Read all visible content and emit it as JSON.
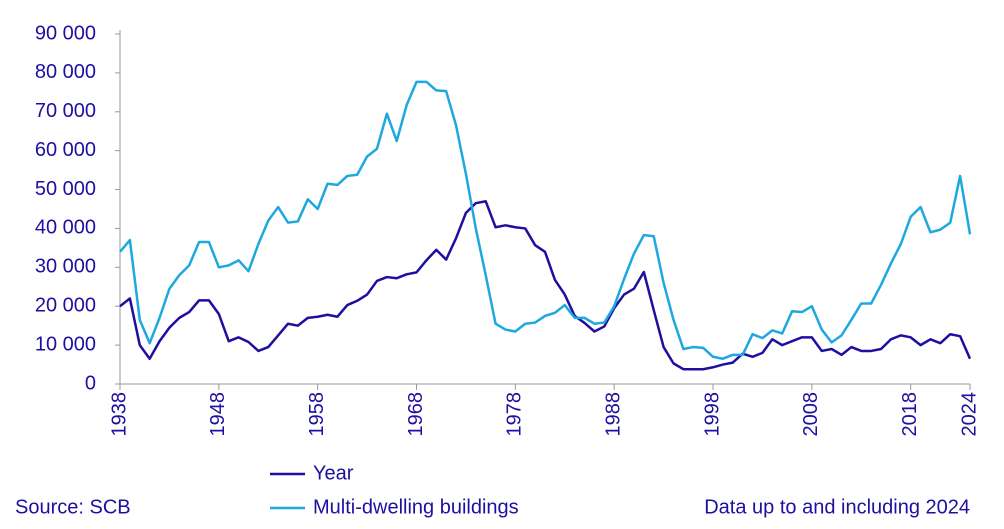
{
  "chart_data": {
    "type": "line",
    "x": [
      1938,
      1939,
      1940,
      1941,
      1942,
      1943,
      1944,
      1945,
      1946,
      1947,
      1948,
      1949,
      1950,
      1951,
      1952,
      1953,
      1954,
      1955,
      1956,
      1957,
      1958,
      1959,
      1960,
      1961,
      1962,
      1963,
      1964,
      1965,
      1966,
      1967,
      1968,
      1969,
      1970,
      1971,
      1972,
      1973,
      1974,
      1975,
      1976,
      1977,
      1978,
      1979,
      1980,
      1981,
      1982,
      1983,
      1984,
      1985,
      1986,
      1987,
      1988,
      1989,
      1990,
      1991,
      1992,
      1993,
      1994,
      1995,
      1996,
      1997,
      1998,
      1999,
      2000,
      2001,
      2002,
      2003,
      2004,
      2005,
      2006,
      2007,
      2008,
      2009,
      2010,
      2011,
      2012,
      2013,
      2014,
      2015,
      2016,
      2017,
      2018,
      2019,
      2020,
      2021,
      2022,
      2023,
      2024
    ],
    "series": [
      {
        "name": "Year",
        "color": "#1e0fa0",
        "values": [
          20000,
          22000,
          10000,
          6500,
          11000,
          14500,
          17000,
          18500,
          21500,
          21500,
          18000,
          11000,
          12000,
          10800,
          8500,
          9500,
          12500,
          15500,
          15000,
          17000,
          17300,
          17800,
          17300,
          20300,
          21400,
          23000,
          26500,
          27500,
          27200,
          28200,
          28700,
          31800,
          34500,
          32000,
          37500,
          44000,
          46500,
          47000,
          40300,
          40800,
          40300,
          40000,
          35700,
          34000,
          26800,
          23000,
          17500,
          15700,
          13500,
          14800,
          19500,
          23000,
          24500,
          28800,
          19000,
          9500,
          5300,
          3800,
          3800,
          3800,
          4300,
          5000,
          5500,
          7800,
          7000,
          8000,
          11500,
          10000,
          11000,
          12000,
          12000,
          8500,
          9000,
          7500,
          9500,
          8500,
          8500,
          9000,
          11500,
          12500,
          12000,
          10000,
          11500,
          10500,
          12800,
          12300,
          6500
        ]
      },
      {
        "name": "Multi-dwelling buildings",
        "color": "#1ea8e0",
        "values": [
          34000,
          37000,
          16500,
          10500,
          17000,
          24500,
          28000,
          30500,
          36500,
          36500,
          30000,
          30500,
          31800,
          29000,
          36000,
          42000,
          45500,
          41500,
          41800,
          47500,
          45000,
          51500,
          51200,
          53500,
          53800,
          58500,
          60500,
          69500,
          62500,
          71700,
          77700,
          77700,
          75500,
          75300,
          66500,
          54000,
          40000,
          28000,
          15500,
          14000,
          13500,
          15500,
          15800,
          17500,
          18300,
          20300,
          17000,
          17000,
          15500,
          15800,
          20000,
          27000,
          33500,
          38300,
          38000,
          26000,
          16500,
          9000,
          9500,
          9300,
          7000,
          6500,
          7500,
          7500,
          12800,
          11800,
          13800,
          13000,
          18700,
          18500,
          20000,
          14000,
          10700,
          12500,
          16500,
          20700,
          20700,
          25500,
          31000,
          36000,
          43000,
          45500,
          39000,
          39700,
          41500,
          53500,
          38500
        ]
      }
    ],
    "xlim": [
      1938,
      2024
    ],
    "xticks": [
      1938,
      1948,
      1958,
      1968,
      1978,
      1988,
      1998,
      2008,
      2018,
      2024
    ],
    "ylim": [
      0,
      90000
    ],
    "yticks": [
      0,
      {
        "value": 10000,
        "label": "10 000"
      },
      {
        "value": 20000,
        "label": "20 000"
      },
      {
        "value": 30000,
        "label": "30 000"
      },
      {
        "value": 40000,
        "label": "40 000"
      },
      {
        "value": 50000,
        "label": "50 000"
      },
      {
        "value": 60000,
        "label": "60 000"
      },
      {
        "value": 70000,
        "label": "70 000"
      },
      {
        "value": 80000,
        "label": "80 000"
      },
      {
        "value": 90000,
        "label": "90 000"
      }
    ],
    "source": "Source: SCB",
    "note": "Data up to and including 2024"
  }
}
